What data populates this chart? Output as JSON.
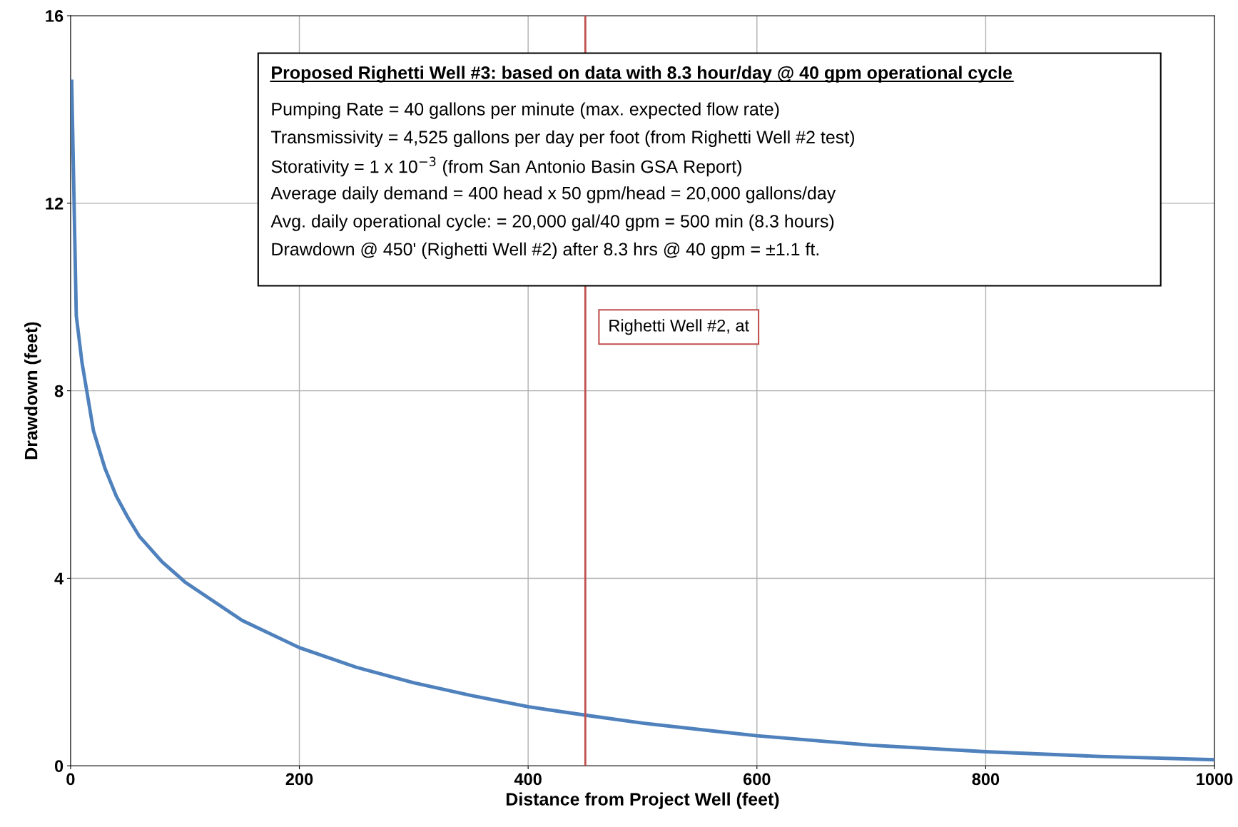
{
  "chart_data": {
    "type": "line",
    "xlabel": "Distance from Project Well (feet)",
    "ylabel": "Drawdown (feet)",
    "x": [
      1,
      5,
      10,
      20,
      30,
      40,
      50,
      60,
      80,
      100,
      150,
      200,
      250,
      300,
      350,
      400,
      450,
      500,
      600,
      700,
      800,
      900,
      1000
    ],
    "series": [
      {
        "color": "#4f81bd",
        "values": [
          14.6,
          9.6,
          8.6,
          7.15,
          6.35,
          5.75,
          5.3,
          4.9,
          4.35,
          3.92,
          3.1,
          2.52,
          2.1,
          1.77,
          1.5,
          1.26,
          1.08,
          0.91,
          0.64,
          0.44,
          0.3,
          0.2,
          0.13
        ]
      }
    ],
    "xlim": [
      0,
      1000
    ],
    "xticks": [
      0,
      200,
      400,
      600,
      800,
      1000
    ],
    "ylim": [
      0,
      16
    ],
    "yticks": [
      0,
      4,
      8,
      12,
      16
    ],
    "grid": true,
    "marker": "none",
    "line_style": "solid",
    "ref_lines": [
      {
        "axis": "x",
        "value": 450,
        "label": "Righetti Well #2, at",
        "color": "#c0504d"
      }
    ],
    "annotations": [
      "Proposed Righetti Well #3: based on data with 8.3 hour/day @ 40 gpm operational cycle",
      "Pumping Rate = 40 gallons per minute (max. expected flow rate)",
      "Transmissivity = 4,525 gallons per day per foot (from Righetti Well #2 test)",
      "Storativity = 1 x 10$^{−3}$ (from San Antonio Basin GSA Report)",
      "Average daily demand = 400 head x 50 gpm/head = 20,000 gallons/day",
      "Avg. daily operational cycle: = 20,000 gal/40 gpm = 500 min (8.3 hours)",
      "Drawdown @ 450' (Righetti Well #2) after 8.3 hrs @ 40 gpm = ±1.1 ft."
    ]
  }
}
